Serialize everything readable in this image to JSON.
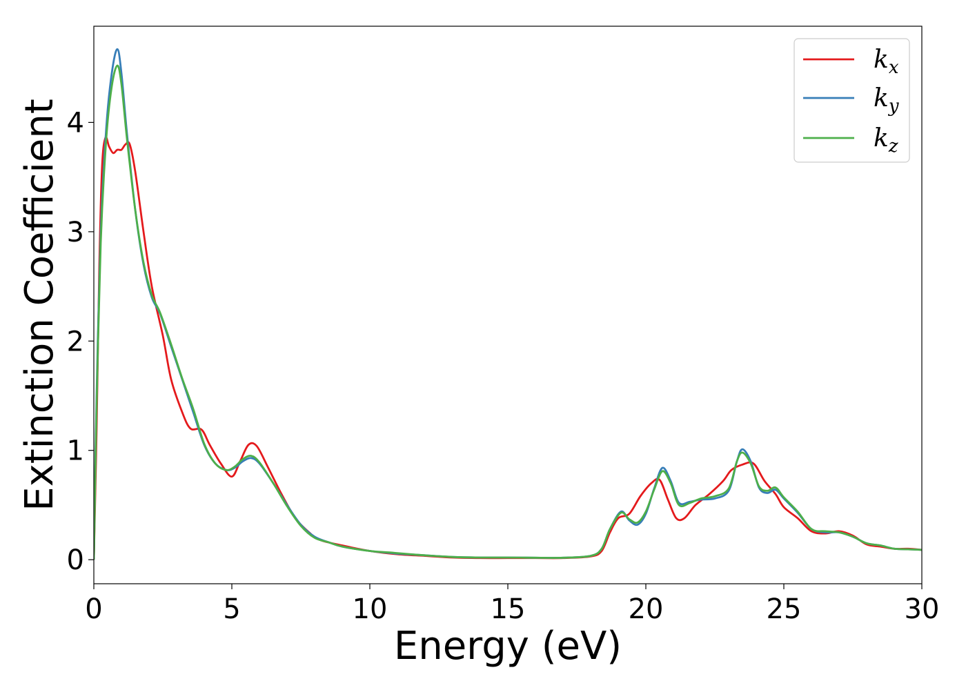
{
  "chart_data": {
    "type": "line",
    "title": "",
    "xlabel": "Energy (eV)",
    "ylabel": "Extinction Coefficient",
    "xlim": [
      0,
      30
    ],
    "ylim": [
      -0.22,
      4.88
    ],
    "xticks": [
      0,
      5,
      10,
      15,
      20,
      25,
      30
    ],
    "yticks": [
      0,
      1,
      2,
      3,
      4
    ],
    "grid": false,
    "legend_position": "top-right",
    "series": [
      {
        "name": "k_x",
        "legend_base": "k",
        "legend_sub": "x",
        "color": "#e41a1c",
        "points": [
          [
            0,
            0
          ],
          [
            0.1,
            1.2
          ],
          [
            0.2,
            2.7
          ],
          [
            0.3,
            3.6
          ],
          [
            0.42,
            3.86
          ],
          [
            0.55,
            3.78
          ],
          [
            0.7,
            3.72
          ],
          [
            0.85,
            3.75
          ],
          [
            1.0,
            3.75
          ],
          [
            1.15,
            3.8
          ],
          [
            1.3,
            3.8
          ],
          [
            1.5,
            3.55
          ],
          [
            1.8,
            3.0
          ],
          [
            2.1,
            2.5
          ],
          [
            2.5,
            2.05
          ],
          [
            2.8,
            1.65
          ],
          [
            3.2,
            1.35
          ],
          [
            3.5,
            1.2
          ],
          [
            3.9,
            1.19
          ],
          [
            4.2,
            1.05
          ],
          [
            4.6,
            0.88
          ],
          [
            5.0,
            0.76
          ],
          [
            5.3,
            0.9
          ],
          [
            5.6,
            1.05
          ],
          [
            5.9,
            1.04
          ],
          [
            6.3,
            0.85
          ],
          [
            6.8,
            0.6
          ],
          [
            7.3,
            0.38
          ],
          [
            7.8,
            0.25
          ],
          [
            8.2,
            0.18
          ],
          [
            9,
            0.13
          ],
          [
            10,
            0.08
          ],
          [
            11,
            0.05
          ],
          [
            12,
            0.035
          ],
          [
            13,
            0.02
          ],
          [
            14,
            0.015
          ],
          [
            15,
            0.015
          ],
          [
            16,
            0.015
          ],
          [
            17,
            0.015
          ],
          [
            18,
            0.03
          ],
          [
            18.4,
            0.08
          ],
          [
            18.7,
            0.25
          ],
          [
            19.0,
            0.38
          ],
          [
            19.4,
            0.42
          ],
          [
            19.8,
            0.58
          ],
          [
            20.2,
            0.7
          ],
          [
            20.5,
            0.73
          ],
          [
            20.8,
            0.55
          ],
          [
            21.1,
            0.38
          ],
          [
            21.4,
            0.38
          ],
          [
            21.8,
            0.5
          ],
          [
            22.3,
            0.6
          ],
          [
            22.8,
            0.72
          ],
          [
            23.1,
            0.82
          ],
          [
            23.5,
            0.87
          ],
          [
            23.9,
            0.88
          ],
          [
            24.3,
            0.72
          ],
          [
            24.7,
            0.6
          ],
          [
            25.0,
            0.48
          ],
          [
            25.5,
            0.38
          ],
          [
            26.0,
            0.26
          ],
          [
            26.5,
            0.24
          ],
          [
            27.0,
            0.26
          ],
          [
            27.5,
            0.22
          ],
          [
            28.0,
            0.14
          ],
          [
            28.5,
            0.12
          ],
          [
            29,
            0.1
          ],
          [
            29.5,
            0.1
          ],
          [
            30,
            0.09
          ]
        ]
      },
      {
        "name": "k_y",
        "legend_base": "k",
        "legend_sub": "y",
        "color": "#377eb8",
        "points": [
          [
            0,
            0
          ],
          [
            0.1,
            1.5
          ],
          [
            0.25,
            3.0
          ],
          [
            0.45,
            3.95
          ],
          [
            0.65,
            4.45
          ],
          [
            0.85,
            4.67
          ],
          [
            1.0,
            4.45
          ],
          [
            1.2,
            3.9
          ],
          [
            1.5,
            3.2
          ],
          [
            1.8,
            2.7
          ],
          [
            2.1,
            2.4
          ],
          [
            2.4,
            2.25
          ],
          [
            2.8,
            1.95
          ],
          [
            3.2,
            1.65
          ],
          [
            3.6,
            1.35
          ],
          [
            4.0,
            1.05
          ],
          [
            4.4,
            0.88
          ],
          [
            4.8,
            0.82
          ],
          [
            5.1,
            0.84
          ],
          [
            5.4,
            0.9
          ],
          [
            5.7,
            0.93
          ],
          [
            6.0,
            0.88
          ],
          [
            6.5,
            0.7
          ],
          [
            7.0,
            0.5
          ],
          [
            7.5,
            0.32
          ],
          [
            8.0,
            0.21
          ],
          [
            8.5,
            0.16
          ],
          [
            9,
            0.12
          ],
          [
            10,
            0.08
          ],
          [
            10.8,
            0.06
          ],
          [
            11,
            0.055
          ],
          [
            12,
            0.04
          ],
          [
            13,
            0.025
          ],
          [
            14,
            0.02
          ],
          [
            15,
            0.02
          ],
          [
            16,
            0.018
          ],
          [
            17,
            0.018
          ],
          [
            18,
            0.035
          ],
          [
            18.4,
            0.1
          ],
          [
            18.7,
            0.28
          ],
          [
            19.1,
            0.44
          ],
          [
            19.4,
            0.36
          ],
          [
            19.7,
            0.32
          ],
          [
            20.0,
            0.42
          ],
          [
            20.3,
            0.65
          ],
          [
            20.6,
            0.84
          ],
          [
            20.9,
            0.72
          ],
          [
            21.2,
            0.52
          ],
          [
            21.6,
            0.53
          ],
          [
            22.0,
            0.55
          ],
          [
            22.5,
            0.56
          ],
          [
            23.0,
            0.63
          ],
          [
            23.3,
            0.9
          ],
          [
            23.5,
            1.01
          ],
          [
            23.8,
            0.9
          ],
          [
            24.1,
            0.66
          ],
          [
            24.4,
            0.61
          ],
          [
            24.7,
            0.64
          ],
          [
            25.0,
            0.56
          ],
          [
            25.5,
            0.43
          ],
          [
            26.0,
            0.28
          ],
          [
            26.5,
            0.25
          ],
          [
            27.0,
            0.25
          ],
          [
            27.5,
            0.21
          ],
          [
            28.0,
            0.15
          ],
          [
            28.5,
            0.13
          ],
          [
            29,
            0.1
          ],
          [
            29.5,
            0.095
          ],
          [
            30,
            0.09
          ]
        ]
      },
      {
        "name": "k_z",
        "legend_base": "k",
        "legend_sub": "z",
        "color": "#4daf4a",
        "points": [
          [
            0,
            0
          ],
          [
            0.1,
            1.4
          ],
          [
            0.25,
            2.9
          ],
          [
            0.45,
            3.85
          ],
          [
            0.65,
            4.33
          ],
          [
            0.85,
            4.52
          ],
          [
            1.0,
            4.35
          ],
          [
            1.2,
            3.85
          ],
          [
            1.5,
            3.2
          ],
          [
            1.8,
            2.72
          ],
          [
            2.1,
            2.42
          ],
          [
            2.4,
            2.26
          ],
          [
            2.8,
            1.97
          ],
          [
            3.2,
            1.66
          ],
          [
            3.6,
            1.38
          ],
          [
            4.0,
            1.06
          ],
          [
            4.4,
            0.88
          ],
          [
            4.8,
            0.82
          ],
          [
            5.1,
            0.85
          ],
          [
            5.4,
            0.92
          ],
          [
            5.7,
            0.95
          ],
          [
            6.0,
            0.89
          ],
          [
            6.5,
            0.7
          ],
          [
            7.0,
            0.49
          ],
          [
            7.5,
            0.31
          ],
          [
            8.0,
            0.2
          ],
          [
            8.5,
            0.16
          ],
          [
            9,
            0.12
          ],
          [
            10,
            0.08
          ],
          [
            10.8,
            0.065
          ],
          [
            11,
            0.06
          ],
          [
            12,
            0.04
          ],
          [
            13,
            0.025
          ],
          [
            14,
            0.02
          ],
          [
            15,
            0.02
          ],
          [
            16,
            0.018
          ],
          [
            17,
            0.018
          ],
          [
            18,
            0.035
          ],
          [
            18.4,
            0.1
          ],
          [
            18.7,
            0.28
          ],
          [
            19.1,
            0.43
          ],
          [
            19.4,
            0.37
          ],
          [
            19.7,
            0.34
          ],
          [
            20.0,
            0.44
          ],
          [
            20.3,
            0.64
          ],
          [
            20.6,
            0.81
          ],
          [
            20.9,
            0.7
          ],
          [
            21.2,
            0.5
          ],
          [
            21.6,
            0.52
          ],
          [
            22.0,
            0.56
          ],
          [
            22.5,
            0.58
          ],
          [
            23.0,
            0.65
          ],
          [
            23.3,
            0.9
          ],
          [
            23.5,
            0.98
          ],
          [
            23.8,
            0.88
          ],
          [
            24.1,
            0.67
          ],
          [
            24.4,
            0.63
          ],
          [
            24.7,
            0.66
          ],
          [
            25.0,
            0.57
          ],
          [
            25.5,
            0.44
          ],
          [
            26.0,
            0.28
          ],
          [
            26.5,
            0.26
          ],
          [
            27.0,
            0.25
          ],
          [
            27.5,
            0.21
          ],
          [
            28.0,
            0.15
          ],
          [
            28.5,
            0.13
          ],
          [
            29,
            0.1
          ],
          [
            29.5,
            0.095
          ],
          [
            30,
            0.09
          ]
        ]
      }
    ]
  }
}
